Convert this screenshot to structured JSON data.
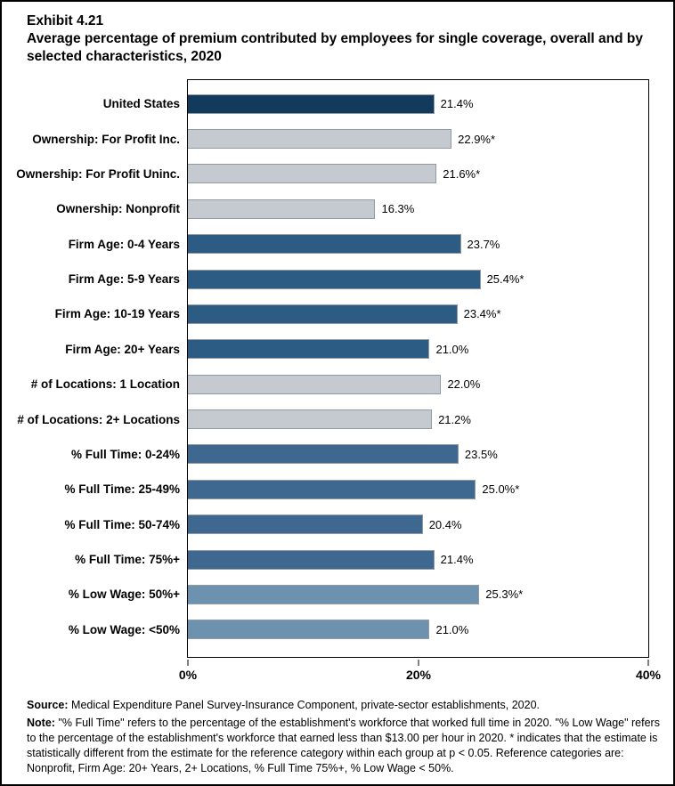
{
  "page": {
    "exhibit_label": "Exhibit 4.21",
    "title": "Average percentage of premium contributed by employees for single coverage, overall and by selected characteristics, 2020"
  },
  "chart_data": {
    "type": "bar",
    "orientation": "horizontal",
    "title": "Average percentage of premium contributed by employees for single coverage, overall and by selected characteristics, 2020",
    "xlabel": "",
    "ylabel": "",
    "xlim": [
      0,
      40
    ],
    "grid": false,
    "legend": "none",
    "xticks": [
      {
        "value": 0,
        "label": "0%"
      },
      {
        "value": 20,
        "label": "20%"
      },
      {
        "value": 40,
        "label": "40%"
      }
    ],
    "bars": [
      {
        "category": "United States",
        "value": 21.4,
        "display": "21.4%",
        "group": "united-states"
      },
      {
        "category": "Ownership: For Profit Inc.",
        "value": 22.9,
        "display": "22.9%*",
        "group": "ownership"
      },
      {
        "category": "Ownership: For Profit Uninc.",
        "value": 21.6,
        "display": "21.6%*",
        "group": "ownership"
      },
      {
        "category": "Ownership: Nonprofit",
        "value": 16.3,
        "display": "16.3%",
        "group": "ownership"
      },
      {
        "category": "Firm Age: 0-4 Years",
        "value": 23.7,
        "display": "23.7%",
        "group": "firm-age"
      },
      {
        "category": "Firm Age: 5-9 Years",
        "value": 25.4,
        "display": "25.4%*",
        "group": "firm-age"
      },
      {
        "category": "Firm Age: 10-19 Years",
        "value": 23.4,
        "display": "23.4%*",
        "group": "firm-age"
      },
      {
        "category": "Firm Age: 20+ Years",
        "value": 21.0,
        "display": "21.0%",
        "group": "firm-age"
      },
      {
        "category": "# of Locations: 1 Location",
        "value": 22.0,
        "display": "22.0%",
        "group": "locations"
      },
      {
        "category": "# of Locations: 2+ Locations",
        "value": 21.2,
        "display": "21.2%",
        "group": "locations"
      },
      {
        "category": "% Full Time: 0-24%",
        "value": 23.5,
        "display": "23.5%",
        "group": "full-time"
      },
      {
        "category": "% Full Time: 25-49%",
        "value": 25.0,
        "display": "25.0%*",
        "group": "full-time"
      },
      {
        "category": "% Full Time: 50-74%",
        "value": 20.4,
        "display": "20.4%",
        "group": "full-time"
      },
      {
        "category": "% Full Time: 75%+",
        "value": 21.4,
        "display": "21.4%",
        "group": "full-time"
      },
      {
        "category": "% Low Wage: 50%+",
        "value": 25.3,
        "display": "25.3%*",
        "group": "low-wage"
      },
      {
        "category": "% Low Wage: <50%",
        "value": 21.0,
        "display": "21.0%",
        "group": "low-wage"
      }
    ],
    "colors": {
      "united-states": "#113A5C",
      "ownership": "#C4CACF",
      "firm-age": "#2C5B83",
      "locations": "#C4CACF",
      "full-time": "#3E6890",
      "low-wage": "#6D92B0",
      "bar_border": "#909AA0"
    }
  },
  "footer": {
    "source_label": "Source:",
    "source_text": "Medical Expenditure Panel Survey-Insurance Component, private-sector establishments, 2020.",
    "note_label": "Note:",
    "note_text": "\"% Full Time\" refers to the percentage of the establishment's workforce that worked full time in 2020. \"% Low Wage\" refers to the percentage of the establishment's workforce that earned less than $13.00 per hour in 2020. * indicates that the estimate is statistically different from the estimate for the reference category within each group at p < 0.05.  Reference categories are: Nonprofit, Firm Age: 20+ Years, 2+ Locations, % Full Time 75%+, % Low Wage < 50%."
  }
}
